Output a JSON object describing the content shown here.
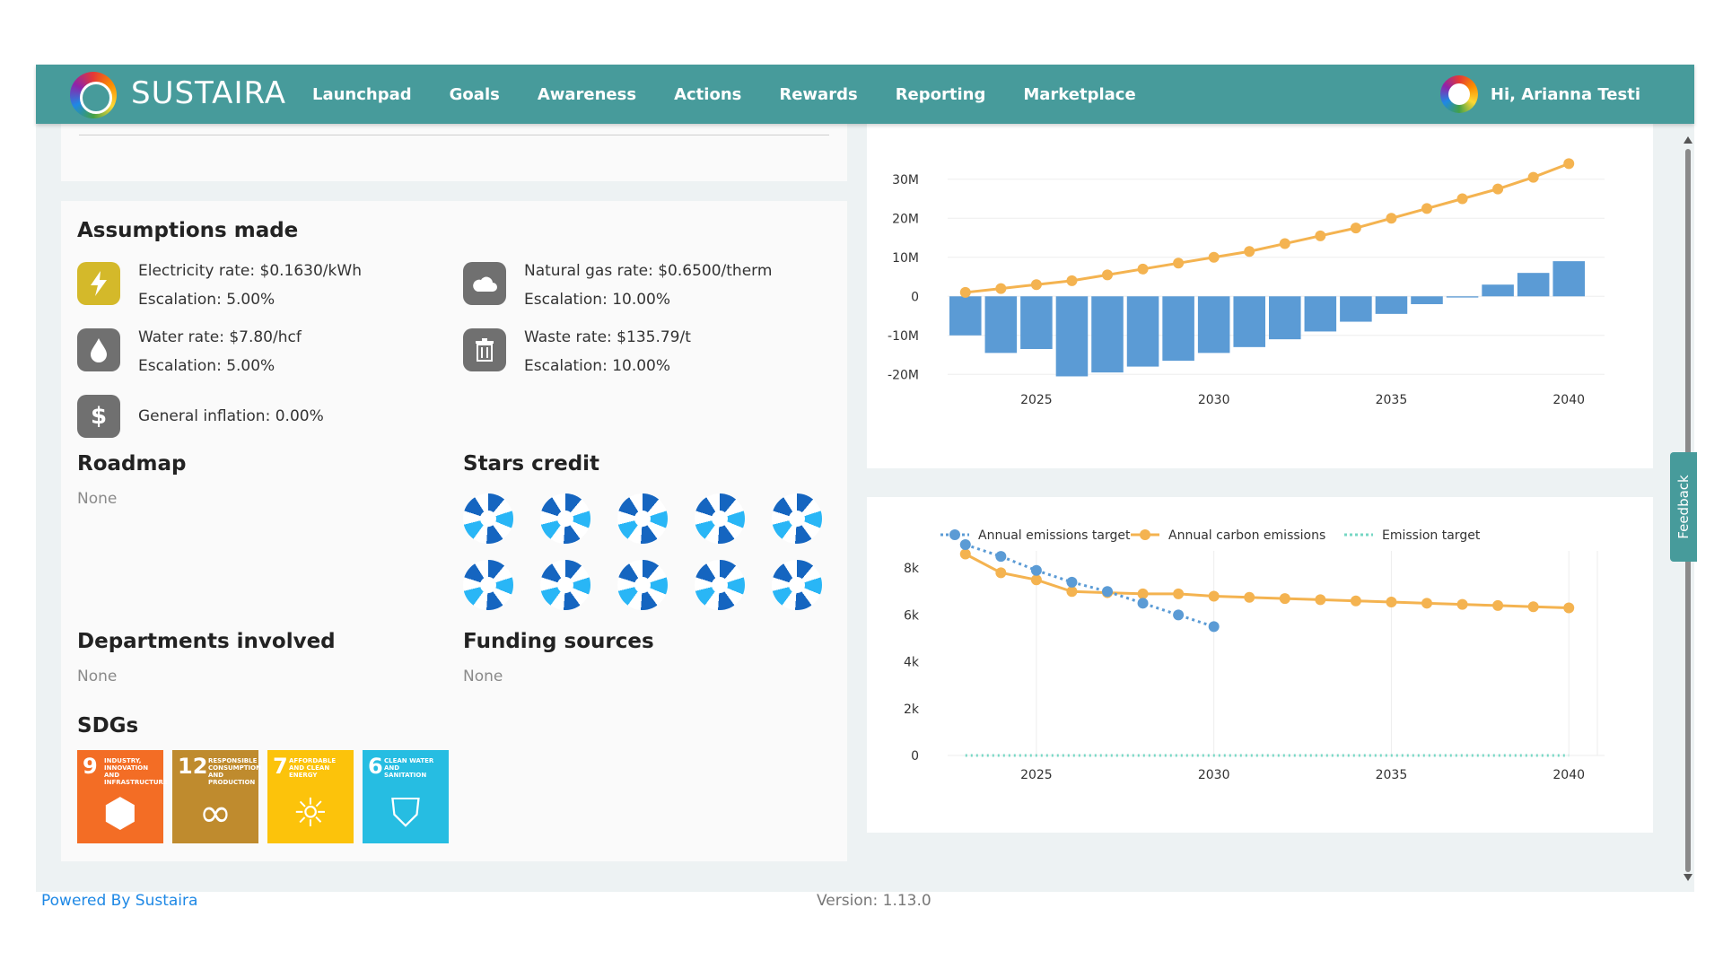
{
  "header": {
    "brand": "SUSTAIRA",
    "nav": [
      "Launchpad",
      "Goals",
      "Awareness",
      "Actions",
      "Rewards",
      "Reporting",
      "Marketplace"
    ],
    "greeting": "Hi, Arianna Testi"
  },
  "assumptions": {
    "title": "Assumptions made",
    "electricity_rate": "Electricity rate: $0.1630/kWh",
    "electricity_escalation": "Escalation: 5.00%",
    "gas_rate": "Natural gas rate: $0.6500/therm",
    "gas_escalation": "Escalation: 10.00%",
    "water_rate": "Water rate: $7.80/hcf",
    "water_escalation": "Escalation: 5.00%",
    "waste_rate": "Waste rate: $135.79/t",
    "waste_escalation": "Escalation: 10.00%",
    "inflation": "General inflation: 0.00%",
    "icons": [
      "lightning-icon",
      "cloud-icon",
      "water-drop-icon",
      "trash-icon",
      "dollar-icon"
    ],
    "icon_colors": [
      "#d4b92a",
      "#707070",
      "#707070",
      "#707070",
      "#707070"
    ]
  },
  "roadmap": {
    "title": "Roadmap",
    "value": "None"
  },
  "stars": {
    "title": "Stars credit",
    "count": 10
  },
  "departments": {
    "title": "Departments involved",
    "value": "None"
  },
  "funding": {
    "title": "Funding sources",
    "value": "None"
  },
  "sdgs": {
    "title": "SDGs",
    "items": [
      {
        "num": "9",
        "label": "Industry, innovation and infrastructure",
        "color": "#f36d25"
      },
      {
        "num": "12",
        "label": "Responsible consumption and production",
        "color": "#bf8b2e"
      },
      {
        "num": "7",
        "label": "Affordable and clean energy",
        "color": "#fcc30b"
      },
      {
        "num": "6",
        "label": "Clean water and sanitation",
        "color": "#26bde2"
      }
    ]
  },
  "chart_data": [
    {
      "type": "bar",
      "title": "",
      "x": [
        2023,
        2024,
        2025,
        2026,
        2027,
        2028,
        2029,
        2030,
        2031,
        2032,
        2033,
        2034,
        2035,
        2036,
        2037,
        2038,
        2039,
        2040
      ],
      "series": [
        {
          "values": [
            -10,
            -14.5,
            -13.5,
            -20.5,
            -19.5,
            -18,
            -16.5,
            -14.5,
            -13,
            -11,
            -9,
            -6.5,
            -4.5,
            -2,
            -0.3,
            3,
            6,
            9
          ],
          "type": "bar",
          "color": "#5b9bd5"
        },
        {
          "values": [
            1,
            2,
            3,
            4,
            5.5,
            7,
            8.5,
            10,
            11.5,
            13.5,
            15.5,
            17.5,
            20,
            22.5,
            25,
            27.5,
            30.5,
            34
          ],
          "type": "line",
          "color": "#f4b350"
        }
      ],
      "x_ticks": [
        "2025",
        "2030",
        "2035",
        "2040"
      ],
      "y_ticks": [
        "30M",
        "20M",
        "10M",
        "0",
        "-10M",
        "-20M"
      ],
      "ylim": [
        -22,
        35
      ],
      "unit": "M",
      "grid": "horizontal"
    },
    {
      "type": "line",
      "title": "",
      "x": [
        2023,
        2024,
        2025,
        2026,
        2027,
        2028,
        2029,
        2030,
        2031,
        2032,
        2033,
        2034,
        2035,
        2036,
        2037,
        2038,
        2039,
        2040
      ],
      "series": [
        {
          "name": "Annual emissions target",
          "x": [
            2023,
            2024,
            2025,
            2026,
            2027,
            2028,
            2029,
            2030
          ],
          "values": [
            9000,
            8500,
            7900,
            7400,
            7000,
            6500,
            6000,
            5500
          ],
          "color": "#5b9bd5",
          "style": "dotted-markers"
        },
        {
          "name": "Annual carbon emissions",
          "values": [
            8600,
            7800,
            7500,
            7000,
            6950,
            6900,
            6900,
            6800,
            6750,
            6700,
            6650,
            6600,
            6550,
            6500,
            6450,
            6400,
            6350,
            6300
          ],
          "color": "#f4b350",
          "style": "solid-markers"
        },
        {
          "name": "Emission target",
          "values": [
            0,
            0,
            0,
            0,
            0,
            0,
            0,
            0,
            0,
            0,
            0,
            0,
            0,
            0,
            0,
            0,
            0,
            0
          ],
          "color": "#76d7c4",
          "style": "dotted"
        }
      ],
      "x_ticks": [
        "2025",
        "2030",
        "2035",
        "2040"
      ],
      "y_ticks": [
        "8k",
        "6k",
        "4k",
        "2k",
        "0"
      ],
      "ylim": [
        0,
        9500
      ],
      "legend": "top",
      "grid": "both"
    }
  ],
  "footer": {
    "powered": "Powered By Sustaira",
    "version": "Version: 1.13.0"
  },
  "feedback": "Feedback"
}
